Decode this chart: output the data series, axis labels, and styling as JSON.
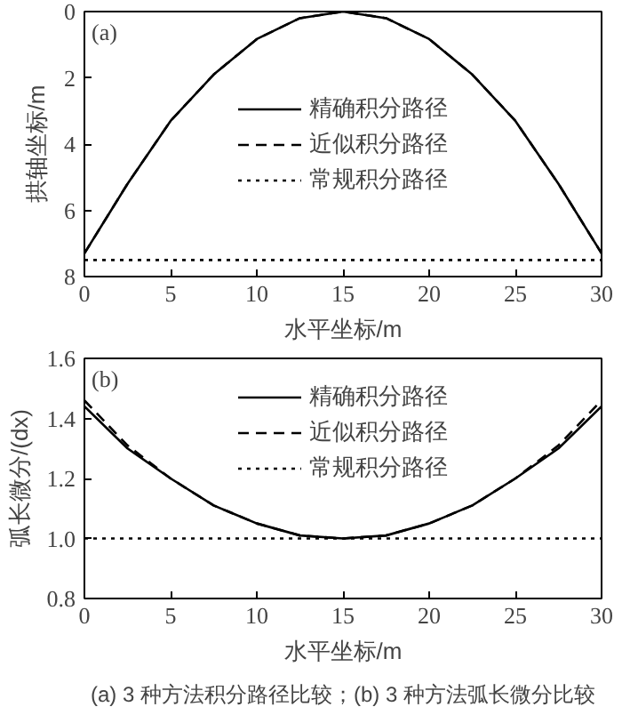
{
  "chart_data": [
    {
      "type": "line",
      "xlabel": "水平坐标/m",
      "ylabel": "拱轴坐标/m",
      "annotations": [
        "(a)"
      ],
      "x": [
        0,
        2.5,
        5,
        7.5,
        10,
        12.5,
        15,
        17.5,
        20,
        22.5,
        25,
        27.5,
        30
      ],
      "series": [
        {
          "name": "精确积分路径",
          "color": "#000000",
          "line_style": "solid",
          "values": [
            7.3,
            5.2,
            3.3,
            1.9,
            0.83,
            0.2,
            0,
            0.2,
            0.83,
            1.9,
            3.3,
            5.2,
            7.3
          ]
        },
        {
          "name": "近似积分路径",
          "color": "#000000",
          "line_style": "dashed",
          "values": [
            7.3,
            5.2,
            3.3,
            1.9,
            0.83,
            0.2,
            0,
            0.2,
            0.83,
            1.9,
            3.3,
            5.2,
            7.3
          ]
        },
        {
          "name": "常规积分路径",
          "color": "#000000",
          "line_style": "dotted",
          "values": [
            7.5,
            7.5,
            7.5,
            7.5,
            7.5,
            7.5,
            7.5,
            7.5,
            7.5,
            7.5,
            7.5,
            7.5,
            7.5
          ]
        }
      ],
      "xlim": [
        0,
        30
      ],
      "ylim": [
        8,
        0
      ],
      "xticks": [
        0,
        5,
        10,
        15,
        20,
        25,
        30
      ],
      "yticks": [
        0,
        2,
        4,
        6,
        8
      ],
      "grid": false,
      "legend": "center"
    },
    {
      "type": "line",
      "xlabel": "水平坐标/m",
      "ylabel": "弧长微分/(dx)",
      "annotations": [
        "(b)",
        "(a) 3 种方法积分路径比较；(b) 3 种方法弧长微分比较"
      ],
      "x": [
        0,
        2.5,
        5,
        7.5,
        10,
        12.5,
        15,
        17.5,
        20,
        22.5,
        25,
        27.5,
        30
      ],
      "series": [
        {
          "name": "精确积分路径",
          "color": "#000000",
          "line_style": "solid",
          "values": [
            1.44,
            1.3,
            1.2,
            1.11,
            1.05,
            1.01,
            1.0,
            1.01,
            1.05,
            1.11,
            1.2,
            1.3,
            1.44
          ]
        },
        {
          "name": "近似积分路径",
          "color": "#000000",
          "line_style": "dashed",
          "values": [
            1.46,
            1.31,
            1.2,
            1.11,
            1.05,
            1.01,
            1.0,
            1.01,
            1.05,
            1.11,
            1.2,
            1.31,
            1.46
          ]
        },
        {
          "name": "常规积分路径",
          "color": "#000000",
          "line_style": "dotted",
          "values": [
            1.0,
            1.0,
            1.0,
            1.0,
            1.0,
            1.0,
            1.0,
            1.0,
            1.0,
            1.0,
            1.0,
            1.0,
            1.0
          ]
        }
      ],
      "xlim": [
        0,
        30
      ],
      "ylim": [
        0.8,
        1.6
      ],
      "xticks": [
        0,
        5,
        10,
        15,
        20,
        25,
        30
      ],
      "yticks": [
        {
          "value": 0.8,
          "label": "0.8"
        },
        {
          "value": 1.0,
          "label": "1.0"
        },
        {
          "value": 1.2,
          "label": "1.2"
        },
        {
          "value": 1.4,
          "label": "1.4"
        },
        {
          "value": 1.6,
          "label": "1.6"
        }
      ],
      "grid": false,
      "legend": "top"
    }
  ]
}
